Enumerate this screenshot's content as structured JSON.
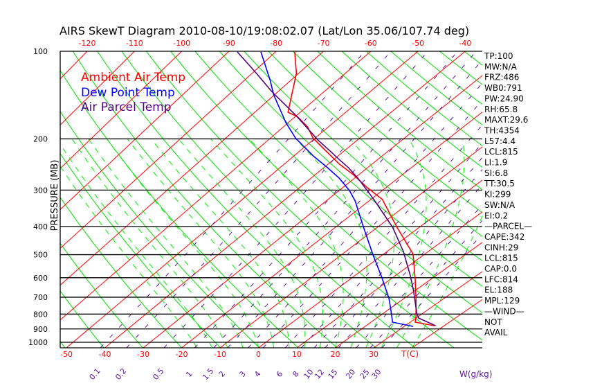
{
  "chart_data": {
    "type": "line",
    "subtype": "skew-t log-p",
    "title": "AIRS SkewT Diagram 2010-08-10/19:08:02.07 (Lat/Lon 35.06/107.74 deg)",
    "ylabel": "PRESSURE (MB)",
    "ylim": [
      1045,
      100
    ],
    "pressure_ticks": [
      100,
      200,
      300,
      400,
      500,
      600,
      700,
      800,
      900,
      1000
    ],
    "pressure_tick_labels": [
      "100",
      "200",
      "300",
      "400",
      "500",
      "600",
      "700",
      "800",
      "900",
      "1000"
    ],
    "top_temp_ticks": [
      -120,
      -110,
      -100,
      -90,
      -80,
      -70,
      -60,
      -50,
      -40
    ],
    "top_temp_labels": [
      "-120",
      "-110",
      "-100",
      "-90",
      "-80",
      "-70",
      "-60",
      "-50",
      "-40"
    ],
    "bottom_temp_ticks": [
      -50,
      -40,
      -30,
      -20,
      -10,
      0,
      10,
      20,
      30
    ],
    "bottom_temp_labels": [
      "-50",
      "-40",
      "-30",
      "-20",
      "-10",
      "0",
      "10",
      "20",
      "30"
    ],
    "bottom_temp_unit": "T(C)",
    "mixing_ratio_ticks": [
      0.1,
      0.2,
      0.5,
      1,
      1.5,
      2,
      3,
      4,
      6,
      8,
      10,
      12,
      15,
      20,
      25,
      30
    ],
    "mixing_ratio_labels": [
      "0.1",
      "0.2",
      "0.5",
      "1",
      "1.5",
      "2",
      "3",
      "4",
      "6",
      "8",
      "10",
      "12",
      "15",
      "20",
      "25",
      "30"
    ],
    "mixing_ratio_unit": "W(g/kg)",
    "legend": [
      {
        "name": "Ambient Air Temp",
        "color": "#ff0000"
      },
      {
        "name": "Dew Point Temp",
        "color": "#0000ff"
      },
      {
        "name": "Air Parcel Temp",
        "color": "#500080"
      }
    ],
    "legend_position": "top-left",
    "series": [
      {
        "name": "Ambient Air Temp",
        "color": "#ff0000",
        "points": [
          [
            100,
            -76.1
          ],
          [
            119,
            -70.5
          ],
          [
            162,
            -62.7
          ],
          [
            168,
            -59.4
          ],
          [
            182,
            -54.6
          ],
          [
            199,
            -50.4
          ],
          [
            219,
            -44.4
          ],
          [
            244,
            -37.5
          ],
          [
            265,
            -31.4
          ],
          [
            293,
            -24.6
          ],
          [
            323,
            -17.3
          ],
          [
            400,
            -5.7
          ],
          [
            498,
            7.2
          ],
          [
            607,
            16.1
          ],
          [
            704,
            22.8
          ],
          [
            817,
            29.5
          ],
          [
            853,
            31.3
          ],
          [
            877,
            37.5
          ]
        ]
      },
      {
        "name": "Dew Point Temp",
        "color": "#0000ff",
        "points": [
          [
            100.5,
            -83.1
          ],
          [
            109,
            -80.0
          ],
          [
            126,
            -74.4
          ],
          [
            141,
            -70.2
          ],
          [
            154,
            -66.4
          ],
          [
            176,
            -60.5
          ],
          [
            199,
            -54.3
          ],
          [
            213,
            -50.1
          ],
          [
            229,
            -45.6
          ],
          [
            251,
            -39.2
          ],
          [
            273,
            -33.5
          ],
          [
            301,
            -27.6
          ],
          [
            327,
            -23.2
          ],
          [
            400,
            -13.6
          ],
          [
            498,
            -2.6
          ],
          [
            598,
            7.2
          ],
          [
            704,
            16.0
          ],
          [
            774,
            20.7
          ],
          [
            853,
            25.5
          ],
          [
            882,
            32.3
          ]
        ]
      },
      {
        "name": "Air Parcel Temp",
        "color": "#500080",
        "points": [
          [
            100.5,
            -88.1
          ],
          [
            117,
            -80.0
          ],
          [
            138,
            -71.2
          ],
          [
            166,
            -60.2
          ],
          [
            202,
            -48.8
          ],
          [
            220,
            -43.2
          ],
          [
            235,
            -38.9
          ],
          [
            251,
            -34.4
          ],
          [
            273,
            -29.2
          ],
          [
            323,
            -19.3
          ],
          [
            403,
            -6.3
          ],
          [
            488,
            4.0
          ],
          [
            588,
            13.5
          ],
          [
            667,
            19.8
          ],
          [
            794,
            28.4
          ],
          [
            826,
            30.7
          ],
          [
            877,
            37.8
          ]
        ]
      }
    ],
    "colors": {
      "isotherm": "#ff0000",
      "dry_adiabat": "#00dd00",
      "moist_adiabat": "#00ee00",
      "mixing_ratio": "#5a14a0",
      "axis": "#000000"
    }
  },
  "stats": [
    {
      "text": "TP:100"
    },
    {
      "text": "MW:N/A"
    },
    {
      "text": "FRZ:486"
    },
    {
      "text": "WB0:791"
    },
    {
      "text": "PW:24.90"
    },
    {
      "text": "RH:65.8"
    },
    {
      "text": "MAXT:29.6"
    },
    {
      "text": "TH:4354"
    },
    {
      "text": "L57:4.4"
    },
    {
      "text": "LCL:815"
    },
    {
      "text": " LI:1.9"
    },
    {
      "text": " SI:6.8"
    },
    {
      "text": "TT:30.5"
    },
    {
      "text": "KI:299"
    },
    {
      "text": "SW:N/A"
    },
    {
      "text": " EI:0.2"
    },
    {
      "text": "—PARCEL—"
    },
    {
      "text": "CAPE:342"
    },
    {
      "text": "CINH:29"
    },
    {
      "text": "LCL:815"
    },
    {
      "text": "CAP:0.0"
    },
    {
      "text": "LFC:814"
    },
    {
      "text": "EL:188"
    },
    {
      "text": "MPL:129"
    },
    {
      "text": "—WIND—"
    },
    {
      "text": " NOT"
    },
    {
      "text": "AVAIL"
    }
  ]
}
